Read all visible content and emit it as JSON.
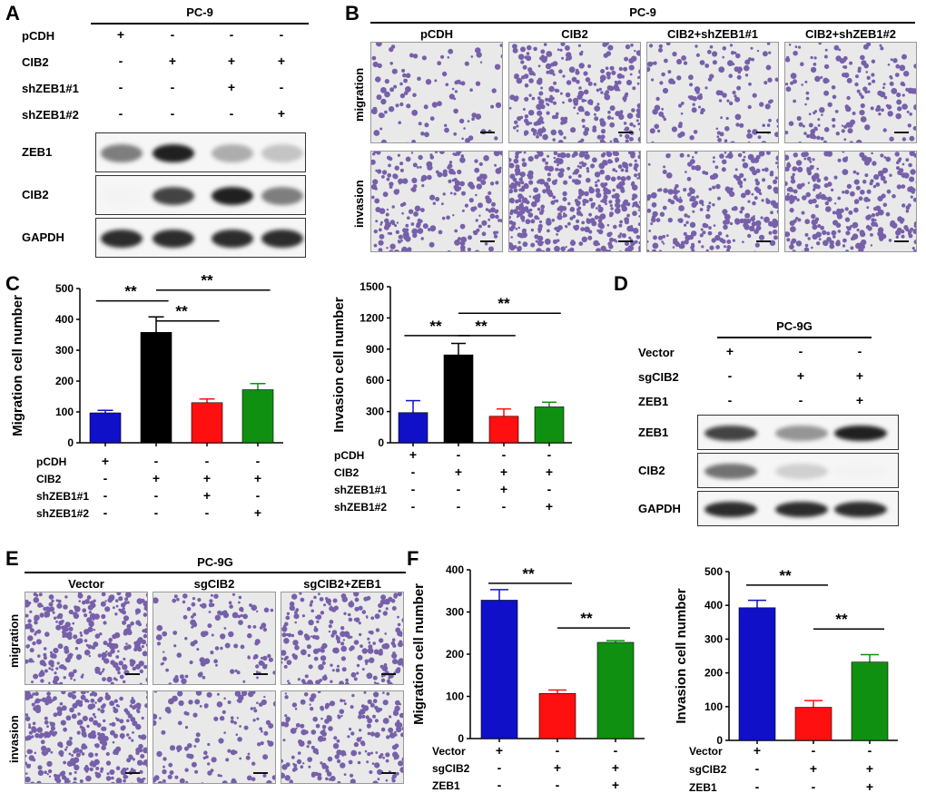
{
  "panel_labels": {
    "A": "A",
    "B": "B",
    "C": "C",
    "D": "D",
    "E": "E",
    "F": "F"
  },
  "colors": {
    "blue": "#1010c8",
    "black": "#000000",
    "red": "#ff1010",
    "green": "#109010"
  },
  "panelA": {
    "cell_line": "PC-9",
    "conditions": [
      {
        "label": "pCDH",
        "marks": [
          "+",
          "-",
          "-",
          "-"
        ]
      },
      {
        "label": "CIB2",
        "marks": [
          "-",
          "+",
          "+",
          "+"
        ]
      },
      {
        "label": "shZEB1#1",
        "marks": [
          "-",
          "-",
          "+",
          "-"
        ]
      },
      {
        "label": "shZEB1#2",
        "marks": [
          "-",
          "-",
          "-",
          "+"
        ]
      }
    ],
    "blots": [
      {
        "label": "ZEB1",
        "intensity": [
          0.55,
          0.95,
          0.35,
          0.25
        ]
      },
      {
        "label": "CIB2",
        "intensity": [
          0.05,
          0.8,
          0.95,
          0.55
        ]
      },
      {
        "label": "GAPDH",
        "intensity": [
          0.9,
          0.9,
          0.9,
          0.9
        ]
      }
    ]
  },
  "panelB": {
    "cell_line": "PC-9",
    "columns": [
      "pCDH",
      "CIB2",
      "CIB2+shZEB1#1",
      "CIB2+shZEB1#2"
    ],
    "rows": [
      "migration",
      "invasion"
    ],
    "density": [
      [
        0.15,
        0.55,
        0.25,
        0.3
      ],
      [
        0.45,
        0.95,
        0.5,
        0.6
      ]
    ]
  },
  "panelD": {
    "cell_line": "PC-9G",
    "conditions": [
      {
        "label": "Vector",
        "marks": [
          "+",
          "-",
          "-"
        ]
      },
      {
        "label": "sgCIB2",
        "marks": [
          "-",
          "+",
          "+"
        ]
      },
      {
        "label": "ZEB1",
        "marks": [
          "-",
          "-",
          "+"
        ]
      }
    ],
    "blots": [
      {
        "label": "ZEB1",
        "intensity": [
          0.8,
          0.45,
          0.95
        ]
      },
      {
        "label": "CIB2",
        "intensity": [
          0.6,
          0.2,
          0.05
        ]
      },
      {
        "label": "GAPDH",
        "intensity": [
          0.9,
          0.9,
          0.9
        ]
      }
    ]
  },
  "panelE": {
    "cell_line": "PC-9G",
    "columns": [
      "Vector",
      "sgCIB2",
      "sgCIB2+ZEB1"
    ],
    "rows": [
      "migration",
      "invasion"
    ],
    "density": [
      [
        0.6,
        0.2,
        0.45
      ],
      [
        0.65,
        0.2,
        0.4
      ]
    ]
  },
  "chart_data": [
    {
      "id": "C-migration",
      "type": "bar",
      "ylabel": "Migration cell number",
      "ylim": [
        0,
        500
      ],
      "yticks": [
        0,
        100,
        200,
        300,
        400,
        500
      ],
      "values": [
        97,
        358,
        130,
        172
      ],
      "errors": [
        8,
        50,
        12,
        20
      ],
      "bar_colors": [
        "#1010c8",
        "#000000",
        "#ff1010",
        "#109010"
      ],
      "condition_rows": [
        {
          "label": "pCDH",
          "marks": [
            "+",
            "-",
            "-",
            "-"
          ]
        },
        {
          "label": "CIB2",
          "marks": [
            "-",
            "+",
            "+",
            "+"
          ]
        },
        {
          "label": "shZEB1#1",
          "marks": [
            "-",
            "-",
            "+",
            "-"
          ]
        },
        {
          "label": "shZEB1#2",
          "marks": [
            "-",
            "-",
            "-",
            "+"
          ]
        }
      ],
      "significance": [
        {
          "from": 0,
          "to": 1,
          "label": "**",
          "y": 460
        },
        {
          "from": 1,
          "to": 2,
          "label": "**",
          "y": 395
        },
        {
          "from": 1,
          "to": 3,
          "label": "**",
          "y": 495
        }
      ]
    },
    {
      "id": "C-invasion",
      "type": "bar",
      "ylabel": "Invasion cell number",
      "ylim": [
        0,
        1500
      ],
      "yticks": [
        0,
        300,
        600,
        900,
        1200,
        1500
      ],
      "values": [
        290,
        845,
        255,
        345
      ],
      "errors": [
        115,
        110,
        70,
        45
      ],
      "bar_colors": [
        "#1010c8",
        "#000000",
        "#ff1010",
        "#109010"
      ],
      "condition_rows": [
        {
          "label": "pCDH",
          "marks": [
            "+",
            "-",
            "-",
            "-"
          ]
        },
        {
          "label": "CIB2",
          "marks": [
            "-",
            "+",
            "+",
            "+"
          ]
        },
        {
          "label": "shZEB1#1",
          "marks": [
            "-",
            "-",
            "+",
            "-"
          ]
        },
        {
          "label": "shZEB1#2",
          "marks": [
            "-",
            "-",
            "-",
            "+"
          ]
        }
      ],
      "significance": [
        {
          "from": 0,
          "to": 1,
          "label": "**",
          "y": 1030
        },
        {
          "from": 1,
          "to": 2,
          "label": "**",
          "y": 1030
        },
        {
          "from": 1,
          "to": 3,
          "label": "**",
          "y": 1245
        }
      ]
    },
    {
      "id": "F-migration",
      "type": "bar",
      "ylabel": "Migration cell number",
      "ylim": [
        0,
        400
      ],
      "yticks": [
        0,
        100,
        200,
        300,
        400
      ],
      "values": [
        328,
        107,
        228
      ],
      "errors": [
        25,
        8,
        4
      ],
      "bar_colors": [
        "#1010c8",
        "#ff1010",
        "#109010"
      ],
      "condition_rows": [
        {
          "label": "Vector",
          "marks": [
            "+",
            "-",
            "-"
          ]
        },
        {
          "label": "sgCIB2",
          "marks": [
            "-",
            "+",
            "+"
          ]
        },
        {
          "label": "ZEB1",
          "marks": [
            "-",
            "-",
            "+"
          ]
        }
      ],
      "significance": [
        {
          "from": 0,
          "to": 1,
          "label": "**",
          "y": 368
        },
        {
          "from": 1,
          "to": 2,
          "label": "**",
          "y": 262
        }
      ]
    },
    {
      "id": "F-invasion",
      "type": "bar",
      "ylabel": "Invasion cell number",
      "ylim": [
        0,
        500
      ],
      "yticks": [
        0,
        100,
        200,
        300,
        400,
        500
      ],
      "values": [
        393,
        98,
        232
      ],
      "errors": [
        22,
        20,
        22
      ],
      "bar_colors": [
        "#1010c8",
        "#ff1010",
        "#109010"
      ],
      "condition_rows": [
        {
          "label": "Vector",
          "marks": [
            "+",
            "-",
            "-"
          ]
        },
        {
          "label": "sgCIB2",
          "marks": [
            "-",
            "+",
            "+"
          ]
        },
        {
          "label": "ZEB1",
          "marks": [
            "-",
            "-",
            "+"
          ]
        }
      ],
      "significance": [
        {
          "from": 0,
          "to": 1,
          "label": "**",
          "y": 460
        },
        {
          "from": 1,
          "to": 2,
          "label": "**",
          "y": 330
        }
      ]
    }
  ]
}
